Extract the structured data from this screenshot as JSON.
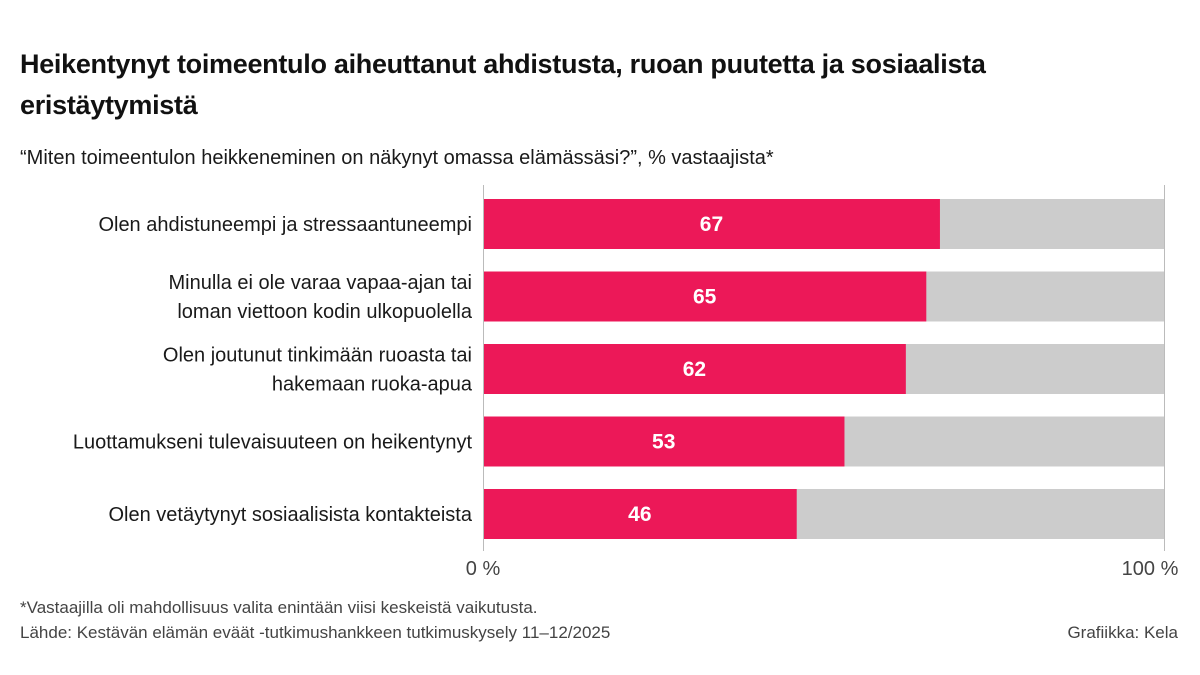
{
  "header": {
    "title": "Heikentynyt toimeentulo aiheuttanut ahdistusta, ruoan puutetta ja sosiaalista eristäytymistä",
    "subtitle": "“Miten toimeentulon heikkeneminen on näkynyt omassa elämässäsi?”, % vastaajista*"
  },
  "footer": {
    "note": "*Vastaajilla oli mahdollisuus valita enintään viisi keskeistä vaikutusta.",
    "source": "Lähde: Kestävän elämän eväät -tutkimushankkeen tutkimuskysely 11–12/2025",
    "credit": "Grafiikka: Kela"
  },
  "chart_data": {
    "type": "bar",
    "orientation": "horizontal",
    "stacked_remainder_to": 100,
    "categories": [
      [
        "Olen ahdistuneempi ja stressaantuneempi"
      ],
      [
        "Minulla ei ole varaa vapaa-ajan tai",
        "loman viettoon kodin ulkopuolella"
      ],
      [
        "Olen joutunut tinkimään ruoasta tai",
        "hakemaan ruoka-apua"
      ],
      [
        "Luottamukseni tulevaisuuteen on heikentynyt"
      ],
      [
        "Olen vetäytynyt sosiaalisista kontakteista"
      ]
    ],
    "values": [
      67,
      65,
      62,
      53,
      46
    ],
    "xlim": [
      0,
      100
    ],
    "xticks": [
      "0 %",
      "100 %"
    ],
    "colors": {
      "value": "#ec1858",
      "remainder": "#cccccc",
      "axis": "#bbbbbb",
      "label": "#ffffff"
    },
    "grid": false
  }
}
